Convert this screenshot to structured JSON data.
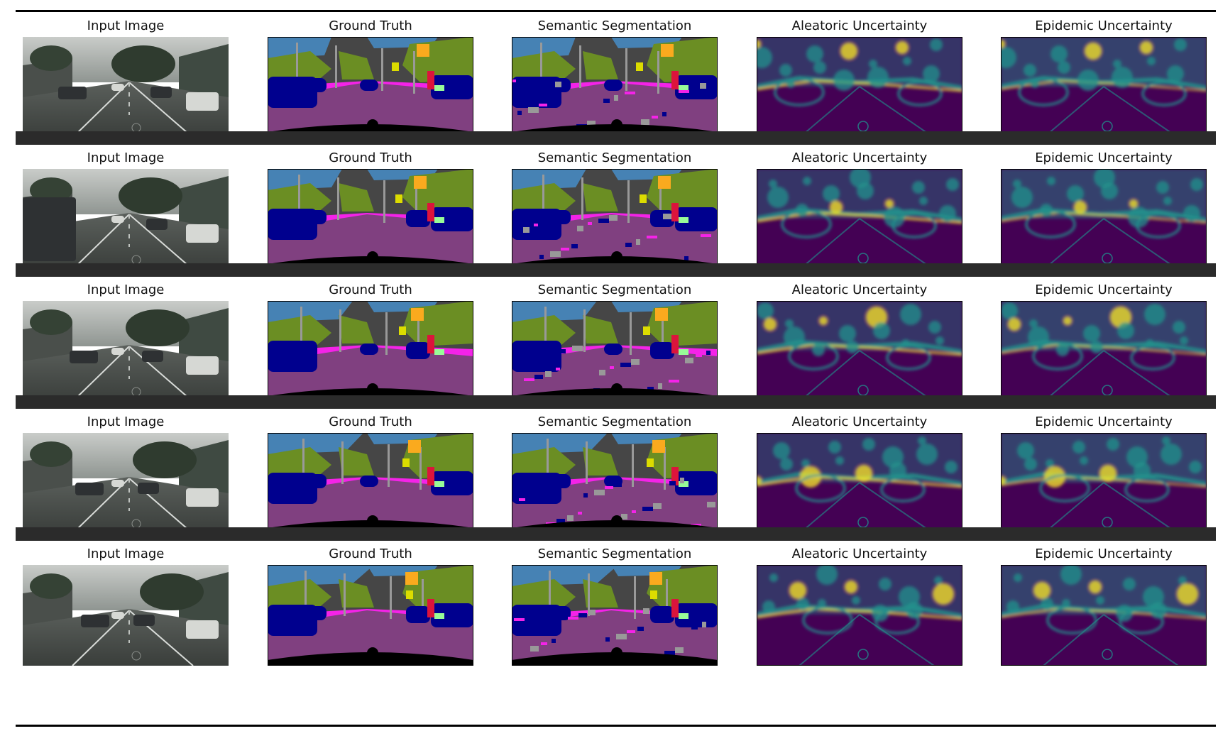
{
  "figure": {
    "columns": [
      {
        "key": "input",
        "title": "Input Image"
      },
      {
        "key": "gt",
        "title": "Ground Truth"
      },
      {
        "key": "seg",
        "title": "Semantic Segmentation"
      },
      {
        "key": "alea",
        "title": "Aleatoric Uncertainty"
      },
      {
        "key": "epi",
        "title": "Epidemic Uncertainty"
      }
    ],
    "rows": [
      {
        "scene": "city street with trees, buildings and cars ahead"
      },
      {
        "scene": "wide street with a large van on the left and traffic lights"
      },
      {
        "scene": "residential street lined with parked cars"
      },
      {
        "scene": "street with white car on the left and pedestrians on the right"
      },
      {
        "scene": "road with police car, traffic lights and several cars"
      }
    ]
  },
  "colors": {
    "road": "#804080",
    "sidewalk": "#f423e8",
    "building": "#464646",
    "vegetation": "#6b8e23",
    "sky": "#4682b4",
    "car": "#00008e",
    "pole": "#999999",
    "sign": "#dcdc00",
    "light": "#faaa1e",
    "person": "#dc143c",
    "terrain": "#98fb98",
    "separator": "#2b2b2b",
    "heat_low": "#440154",
    "heat_mid": "#21918c",
    "heat_high": "#fde725"
  }
}
